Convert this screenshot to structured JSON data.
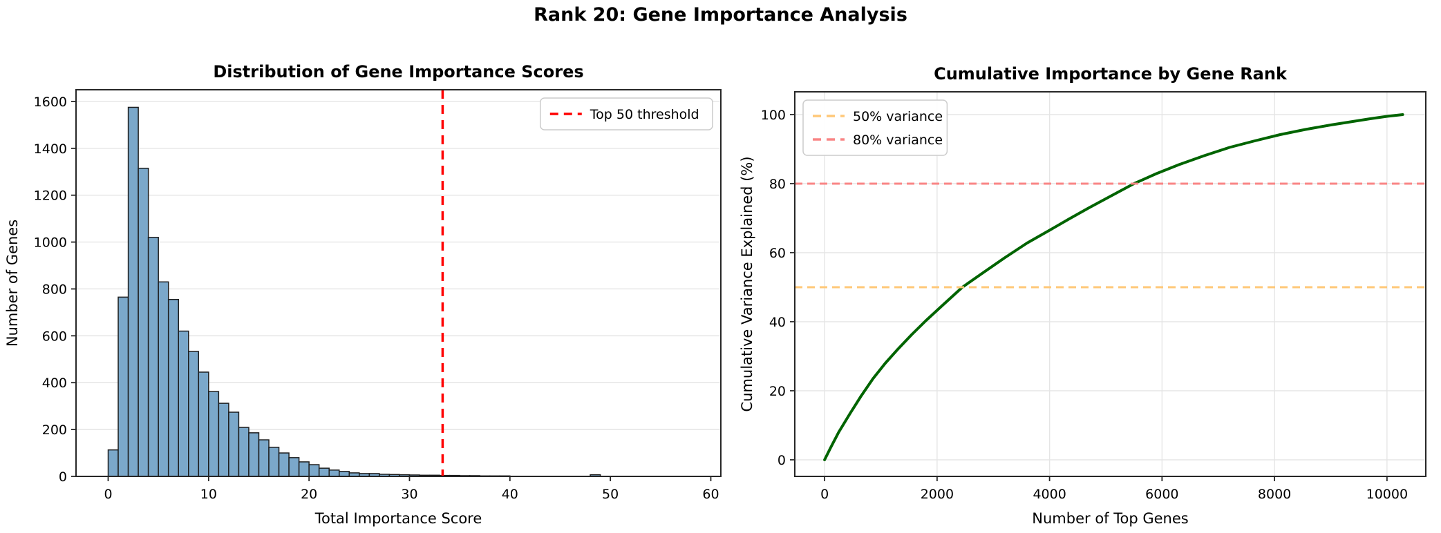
{
  "suptitle": "Rank 20: Gene Importance Analysis",
  "chart_data": [
    {
      "id": "importance-histogram",
      "type": "bar",
      "title": "Distribution of Gene Importance Scores",
      "xlabel": "Total Importance Score",
      "ylabel": "Number of Genes",
      "xlim": [
        -3.2,
        61
      ],
      "ylim": [
        0,
        1650
      ],
      "xticks": [
        0,
        10,
        20,
        30,
        40,
        50,
        60
      ],
      "yticks": [
        0,
        200,
        400,
        600,
        800,
        1000,
        1200,
        1400,
        1600
      ],
      "grid": "y",
      "bin_start": 0,
      "bin_width": 1,
      "values": [
        113,
        765,
        1575,
        1315,
        1020,
        830,
        755,
        620,
        533,
        445,
        362,
        312,
        274,
        209,
        186,
        156,
        124,
        100,
        80,
        62,
        50,
        35,
        27,
        21,
        15,
        12,
        12,
        9,
        8,
        7,
        6,
        5,
        5,
        4,
        4,
        3,
        3,
        2,
        2,
        2,
        0,
        0,
        0,
        0,
        0,
        0,
        0,
        0,
        7,
        0
      ],
      "colors": {
        "bar_fill": "#7BA8CA",
        "bar_edge": "#1C1C1C",
        "grid": "#E5E5E5",
        "frame": "#262626"
      },
      "vlines": [
        {
          "x": 33.3,
          "color": "#FF0000",
          "label": "Top 50 threshold"
        }
      ],
      "legend": {
        "position": "top-right",
        "items": [
          {
            "label": "Top 50 threshold",
            "color": "#FF0000"
          }
        ]
      }
    },
    {
      "id": "cumulative-curve",
      "type": "line",
      "title": "Cumulative Importance by Gene Rank",
      "xlabel": "Number of Top Genes",
      "ylabel": "Cumulative Variance Explained (%)",
      "xlim": [
        -530,
        10690
      ],
      "ylim": [
        -4.8,
        106.6
      ],
      "xticks": [
        0,
        2000,
        4000,
        6000,
        8000,
        10000
      ],
      "yticks": [
        0,
        20,
        40,
        60,
        80,
        100
      ],
      "grid": "both",
      "line_color": "#006400",
      "points": [
        [
          0,
          0
        ],
        [
          100,
          3.3
        ],
        [
          250,
          8
        ],
        [
          455,
          13.5
        ],
        [
          650,
          18.5
        ],
        [
          860,
          23.5
        ],
        [
          1080,
          28
        ],
        [
          1300,
          32
        ],
        [
          1550,
          36.3
        ],
        [
          1800,
          40.3
        ],
        [
          2100,
          44.8
        ],
        [
          2450,
          50
        ],
        [
          2800,
          54
        ],
        [
          3200,
          58.5
        ],
        [
          3600,
          62.8
        ],
        [
          4000,
          66.5
        ],
        [
          4350,
          69.8
        ],
        [
          4700,
          73
        ],
        [
          5100,
          76.5
        ],
        [
          5500,
          80
        ],
        [
          5900,
          82.9
        ],
        [
          6300,
          85.5
        ],
        [
          6750,
          88.1
        ],
        [
          7200,
          90.5
        ],
        [
          7650,
          92.4
        ],
        [
          8100,
          94.2
        ],
        [
          8550,
          95.7
        ],
        [
          9000,
          97
        ],
        [
          9350,
          97.9
        ],
        [
          9700,
          98.8
        ],
        [
          10000,
          99.5
        ],
        [
          10280,
          100
        ]
      ],
      "colors": {
        "grid": "#E5E5E5",
        "frame": "#262626"
      },
      "hlines": [
        {
          "y": 50,
          "color": "#FFC878",
          "label": "50% variance"
        },
        {
          "y": 80,
          "color": "#F98585",
          "label": "80% variance"
        }
      ],
      "legend": {
        "position": "top-left",
        "items": [
          {
            "label": "50% variance",
            "color": "#FFC878"
          },
          {
            "label": "80% variance",
            "color": "#F98585"
          }
        ]
      }
    }
  ]
}
